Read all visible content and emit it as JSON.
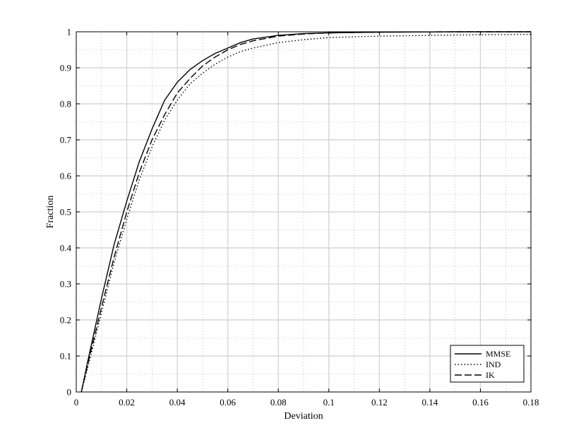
{
  "chart_data": {
    "type": "line",
    "title": "",
    "xlabel": "Deviation",
    "ylabel": "Fraction",
    "xlim": [
      0,
      0.18
    ],
    "ylim": [
      0,
      1
    ],
    "x_ticks": [
      "0",
      "0.02",
      "0.04",
      "0.06",
      "0.08",
      "0.1",
      "0.12",
      "0.14",
      "0.16",
      "0.18"
    ],
    "y_ticks": [
      "0",
      "0.1",
      "0.2",
      "0.3",
      "0.4",
      "0.5",
      "0.6",
      "0.7",
      "0.8",
      "0.9",
      "1"
    ],
    "grid": true,
    "minor_grid": true,
    "legend_position": "bottom-right",
    "series": [
      {
        "name": "MMSE",
        "style": "solid",
        "x": [
          0.002,
          0.005,
          0.01,
          0.015,
          0.02,
          0.025,
          0.03,
          0.035,
          0.04,
          0.045,
          0.05,
          0.055,
          0.06,
          0.065,
          0.07,
          0.08,
          0.09,
          0.1,
          0.12,
          0.15,
          0.18
        ],
        "y": [
          0,
          0.1,
          0.26,
          0.41,
          0.53,
          0.64,
          0.73,
          0.81,
          0.86,
          0.895,
          0.92,
          0.94,
          0.955,
          0.97,
          0.98,
          0.99,
          0.995,
          0.997,
          0.999,
          1.0,
          1.0
        ]
      },
      {
        "name": "IND",
        "style": "dotted",
        "x": [
          0.002,
          0.005,
          0.01,
          0.015,
          0.02,
          0.025,
          0.03,
          0.035,
          0.04,
          0.045,
          0.05,
          0.055,
          0.06,
          0.065,
          0.07,
          0.08,
          0.09,
          0.1,
          0.12,
          0.15,
          0.18
        ],
        "y": [
          0,
          0.08,
          0.22,
          0.36,
          0.48,
          0.59,
          0.68,
          0.755,
          0.81,
          0.855,
          0.885,
          0.91,
          0.93,
          0.945,
          0.955,
          0.97,
          0.978,
          0.984,
          0.988,
          0.991,
          0.993
        ]
      },
      {
        "name": "IK",
        "style": "dashed",
        "x": [
          0.002,
          0.005,
          0.01,
          0.015,
          0.02,
          0.025,
          0.03,
          0.035,
          0.04,
          0.045,
          0.05,
          0.055,
          0.06,
          0.065,
          0.07,
          0.08,
          0.09,
          0.1,
          0.12,
          0.15,
          0.18
        ],
        "y": [
          0,
          0.09,
          0.235,
          0.375,
          0.5,
          0.61,
          0.7,
          0.77,
          0.83,
          0.87,
          0.905,
          0.93,
          0.95,
          0.965,
          0.975,
          0.988,
          0.994,
          0.997,
          0.999,
          1.0,
          1.0
        ]
      }
    ]
  }
}
